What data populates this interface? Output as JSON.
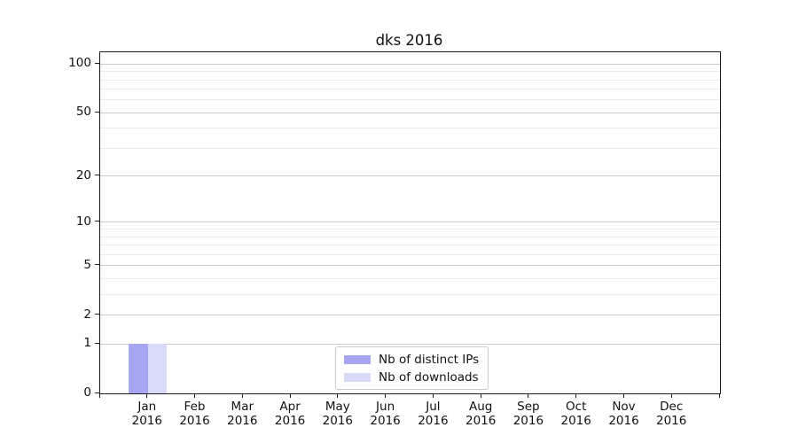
{
  "title": "dks 2016",
  "chart_data": {
    "type": "bar",
    "title": "dks 2016",
    "categories": [
      "Jan 2016",
      "Feb 2016",
      "Mar 2016",
      "Apr 2016",
      "May 2016",
      "Jun 2016",
      "Jul 2016",
      "Aug 2016",
      "Sep 2016",
      "Oct 2016",
      "Nov 2016",
      "Dec 2016"
    ],
    "series": [
      {
        "name": "Nb of distinct IPs",
        "color": "#a6a6f2",
        "values": [
          1,
          0,
          0,
          0,
          0,
          0,
          0,
          0,
          0,
          0,
          0,
          0
        ]
      },
      {
        "name": "Nb of downloads",
        "color": "#d9d9f8",
        "values": [
          1,
          0,
          0,
          0,
          0,
          0,
          0,
          0,
          0,
          0,
          0,
          0
        ]
      }
    ],
    "y_axis": {
      "scale": "log1p",
      "major_ticks": [
        0,
        1,
        2,
        5,
        10,
        20,
        50,
        100
      ],
      "minor_ticks": [
        3,
        4,
        6,
        7,
        8,
        9,
        30,
        40,
        60,
        70,
        80,
        90
      ],
      "min": 0,
      "max": 118
    },
    "x_axis": {
      "tick_years": "2016"
    },
    "legend": {
      "position": "lower center",
      "entries": [
        {
          "label": "Nb of distinct IPs",
          "color": "#a6a6f2"
        },
        {
          "label": "Nb of downloads",
          "color": "#d9d9f8"
        }
      ]
    },
    "grid": true,
    "background": "#ffffff"
  }
}
